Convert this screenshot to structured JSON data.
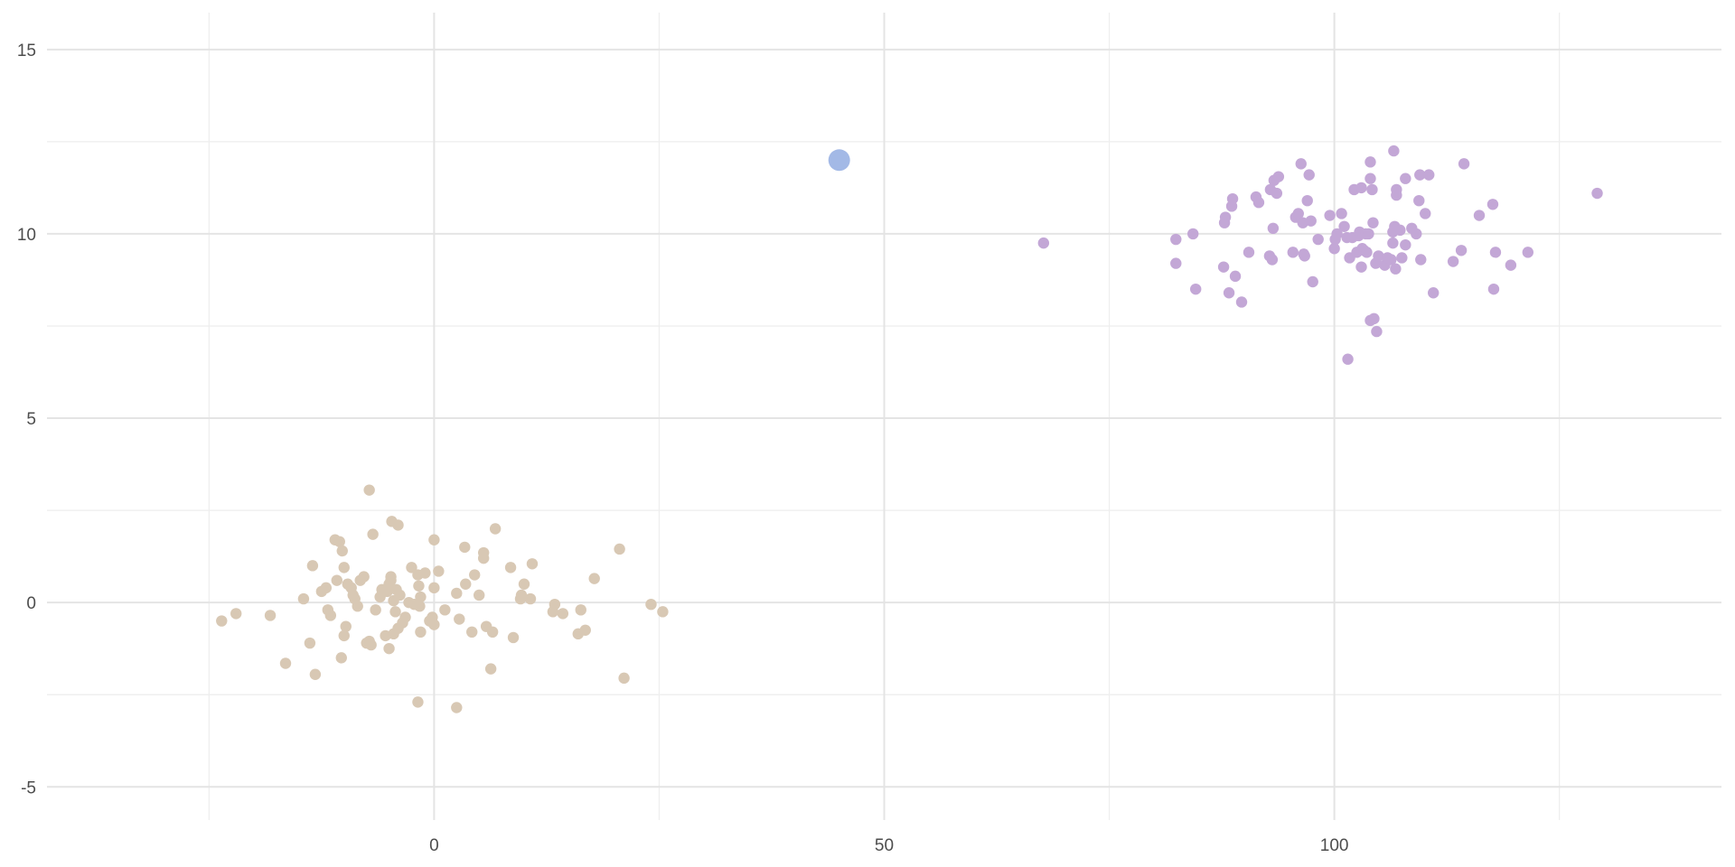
{
  "chart_data": {
    "type": "scatter",
    "title": "",
    "xlabel": "",
    "ylabel": "",
    "xlim": [
      -43,
      143
    ],
    "ylim": [
      -5.9,
      16
    ],
    "x_ticks": [
      0,
      50,
      100
    ],
    "x_tick_labels": [
      "0",
      "50",
      "100"
    ],
    "x_minor_ticks": [
      -25,
      25,
      75,
      125
    ],
    "y_ticks": [
      -5,
      0,
      5,
      10,
      15
    ],
    "y_tick_labels": [
      "-5",
      "0",
      "5",
      "10",
      "15"
    ],
    "y_minor_ticks": [
      -2.5,
      2.5,
      7.5,
      12.5
    ],
    "grid": true,
    "legend": "none",
    "series": [
      {
        "color": "#d8c8b4",
        "points": [
          [
            -23.6,
            -0.5
          ],
          [
            -22,
            -0.3
          ],
          [
            -18.2,
            -0.35
          ],
          [
            -16.5,
            -1.65
          ],
          [
            -14.5,
            0.1
          ],
          [
            -13.8,
            -1.1
          ],
          [
            -13.5,
            1
          ],
          [
            -13.2,
            -1.95
          ],
          [
            -12.5,
            0.3
          ],
          [
            -12,
            0.4
          ],
          [
            -11.8,
            -0.2
          ],
          [
            -11.5,
            -0.35
          ],
          [
            -11,
            1.7
          ],
          [
            -10.8,
            0.6
          ],
          [
            -10.5,
            1.65
          ],
          [
            -10.2,
            1.4
          ],
          [
            -10,
            0.95
          ],
          [
            -10.3,
            -1.5
          ],
          [
            -10,
            -0.9
          ],
          [
            -9.8,
            -0.65
          ],
          [
            -9.6,
            0.5
          ],
          [
            -9.2,
            0.4
          ],
          [
            -9,
            0.2
          ],
          [
            -8.8,
            0.1
          ],
          [
            -8.5,
            -0.1
          ],
          [
            -8.2,
            0.6
          ],
          [
            -7.8,
            0.7
          ],
          [
            -7.5,
            -1.1
          ],
          [
            -7.2,
            -1.05
          ],
          [
            -7,
            -1.15
          ],
          [
            -6.8,
            1.85
          ],
          [
            -6.5,
            -0.2
          ],
          [
            -6,
            0.15
          ],
          [
            -5.8,
            0.35
          ],
          [
            -5.6,
            0.3
          ],
          [
            -5.4,
            -0.9
          ],
          [
            -5.2,
            0.3
          ],
          [
            -5,
            -1.25
          ],
          [
            -5,
            0.5
          ],
          [
            -4.8,
            0.6
          ],
          [
            -4.8,
            0.7
          ],
          [
            -4.7,
            2.2
          ],
          [
            -4.5,
            0.05
          ],
          [
            -4.5,
            -0.85
          ],
          [
            -4.3,
            -0.25
          ],
          [
            -4.2,
            0.35
          ],
          [
            -4,
            2.1
          ],
          [
            -4,
            -0.7
          ],
          [
            -3.8,
            0.2
          ],
          [
            -3.5,
            -0.55
          ],
          [
            -3.2,
            -0.4
          ],
          [
            -7.2,
            3.05
          ],
          [
            -2.8,
            0
          ],
          [
            -2.5,
            0.95
          ],
          [
            -2.2,
            -0.05
          ],
          [
            -1.8,
            0.75
          ],
          [
            -1.8,
            -2.7
          ],
          [
            -1.7,
            0.45
          ],
          [
            -1.6,
            -0.1
          ],
          [
            -1.5,
            0.15
          ],
          [
            -1.5,
            -0.8
          ],
          [
            -1,
            0.8
          ],
          [
            -0.5,
            -0.5
          ],
          [
            -0.2,
            -0.4
          ],
          [
            0,
            0.4
          ],
          [
            0,
            -0.6
          ],
          [
            0,
            1.7
          ],
          [
            0.5,
            0.85
          ],
          [
            1.2,
            -0.2
          ],
          [
            2.5,
            0.25
          ],
          [
            2.5,
            -2.85
          ],
          [
            2.8,
            -0.45
          ],
          [
            3.4,
            1.5
          ],
          [
            3.5,
            0.5
          ],
          [
            4.2,
            -0.8
          ],
          [
            4.5,
            0.75
          ],
          [
            5,
            0.2
          ],
          [
            5.5,
            1.2
          ],
          [
            5.5,
            1.35
          ],
          [
            5.8,
            -0.65
          ],
          [
            6.3,
            -1.8
          ],
          [
            6.5,
            -0.8
          ],
          [
            6.8,
            2
          ],
          [
            8.5,
            0.95
          ],
          [
            8.8,
            -0.95
          ],
          [
            9.6,
            0.1
          ],
          [
            9.7,
            0.2
          ],
          [
            10,
            0.5
          ],
          [
            10.7,
            0.1
          ],
          [
            10.9,
            1.05
          ],
          [
            13.2,
            -0.25
          ],
          [
            13.4,
            -0.05
          ],
          [
            14.3,
            -0.3
          ],
          [
            16,
            -0.85
          ],
          [
            16.3,
            -0.2
          ],
          [
            16.8,
            -0.75
          ],
          [
            17.8,
            0.65
          ],
          [
            20.6,
            1.45
          ],
          [
            21.1,
            -2.05
          ],
          [
            24.1,
            -0.05
          ],
          [
            25.4,
            -0.25
          ]
        ]
      },
      {
        "color": "#c3a7d6",
        "points": [
          [
            67.7,
            9.75
          ],
          [
            82.4,
            9.85
          ],
          [
            82.4,
            9.2
          ],
          [
            84.3,
            10
          ],
          [
            84.6,
            8.5
          ],
          [
            87.7,
            9.1
          ],
          [
            87.8,
            10.3
          ],
          [
            87.9,
            10.45
          ],
          [
            88.3,
            8.4
          ],
          [
            88.6,
            10.75
          ],
          [
            88.7,
            10.95
          ],
          [
            89,
            8.85
          ],
          [
            89.7,
            8.15
          ],
          [
            90.5,
            9.5
          ],
          [
            91.3,
            11
          ],
          [
            91.6,
            10.85
          ],
          [
            92.8,
            9.4
          ],
          [
            92.9,
            11.2
          ],
          [
            93.1,
            9.3
          ],
          [
            93.2,
            10.15
          ],
          [
            93.3,
            11.45
          ],
          [
            93.6,
            11.1
          ],
          [
            93.8,
            11.55
          ],
          [
            95.4,
            9.5
          ],
          [
            95.7,
            10.45
          ],
          [
            96,
            10.55
          ],
          [
            96.3,
            11.9
          ],
          [
            96.5,
            10.3
          ],
          [
            96.6,
            9.45
          ],
          [
            96.7,
            9.4
          ],
          [
            97,
            10.9
          ],
          [
            97.2,
            11.6
          ],
          [
            97.4,
            10.35
          ],
          [
            97.6,
            8.7
          ],
          [
            98.2,
            9.85
          ],
          [
            99.5,
            10.5
          ],
          [
            100,
            9.6
          ],
          [
            100.1,
            9.85
          ],
          [
            100.3,
            10
          ],
          [
            100.8,
            10.55
          ],
          [
            101.1,
            10.2
          ],
          [
            101.4,
            9.9
          ],
          [
            101.5,
            6.6
          ],
          [
            101.7,
            9.35
          ],
          [
            102,
            9.9
          ],
          [
            102.2,
            11.2
          ],
          [
            102.5,
            9.5
          ],
          [
            102.7,
            9.95
          ],
          [
            102.8,
            10.05
          ],
          [
            103,
            11.25
          ],
          [
            103,
            9.1
          ],
          [
            103.1,
            9.6
          ],
          [
            103.3,
            9.55
          ],
          [
            103.5,
            10
          ],
          [
            103.6,
            9.5
          ],
          [
            103.8,
            10
          ],
          [
            104,
            7.65
          ],
          [
            104,
            11.95
          ],
          [
            104,
            11.5
          ],
          [
            104.2,
            11.2
          ],
          [
            104.3,
            10.3
          ],
          [
            104.4,
            7.7
          ],
          [
            104.6,
            9.2
          ],
          [
            104.7,
            7.35
          ],
          [
            104.9,
            9.4
          ],
          [
            105.6,
            9.15
          ],
          [
            105.9,
            9.35
          ],
          [
            106.3,
            9.3
          ],
          [
            106.5,
            10.05
          ],
          [
            106.5,
            9.75
          ],
          [
            106.6,
            12.25
          ],
          [
            106.7,
            10.2
          ],
          [
            106.8,
            9.05
          ],
          [
            106.9,
            11.05
          ],
          [
            106.9,
            11.2
          ],
          [
            107.3,
            10.1
          ],
          [
            107.5,
            9.35
          ],
          [
            107.9,
            11.5
          ],
          [
            107.9,
            9.7
          ],
          [
            108.6,
            10.15
          ],
          [
            109.1,
            10
          ],
          [
            109.4,
            10.9
          ],
          [
            109.5,
            11.6
          ],
          [
            109.6,
            9.3
          ],
          [
            110.1,
            10.55
          ],
          [
            110.5,
            11.6
          ],
          [
            111,
            8.4
          ],
          [
            113.2,
            9.25
          ],
          [
            114.1,
            9.55
          ],
          [
            114.4,
            11.9
          ],
          [
            116.1,
            10.5
          ],
          [
            117.6,
            10.8
          ],
          [
            117.7,
            8.5
          ],
          [
            117.9,
            9.5
          ],
          [
            119.6,
            9.15
          ],
          [
            121.5,
            9.5
          ],
          [
            129.2,
            11.1
          ]
        ]
      },
      {
        "color": "#a3b9e6",
        "points": [
          [
            45,
            12
          ]
        ]
      }
    ]
  }
}
